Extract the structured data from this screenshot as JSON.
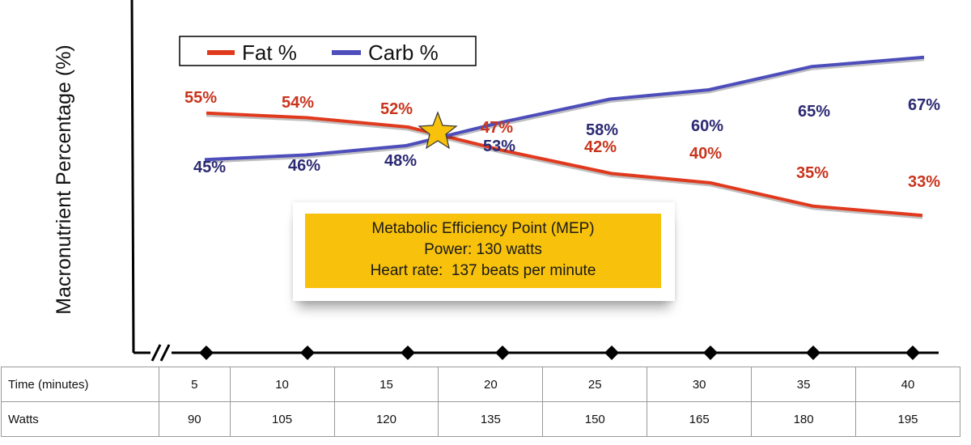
{
  "chart_data": {
    "type": "line",
    "ylabel": "Macronutrient Percentage (%)",
    "x": [
      5,
      10,
      15,
      20,
      25,
      30,
      35,
      40
    ],
    "series": [
      {
        "name": "Fat %",
        "color": "#e03a1e",
        "values": [
          55,
          54,
          52,
          47,
          42,
          40,
          35,
          33
        ],
        "labels": [
          "55%",
          "54%",
          "52%",
          "47%",
          "42%",
          "40%",
          "35%",
          "33%"
        ]
      },
      {
        "name": "Carb %",
        "color": "#4d4dbb",
        "values": [
          45,
          46,
          48,
          53,
          58,
          60,
          65,
          67
        ],
        "labels": [
          "45%",
          "46%",
          "48%",
          "53%",
          "58%",
          "60%",
          "65%",
          "67%"
        ]
      }
    ],
    "annotation": {
      "marker": "star",
      "lines": [
        "Metabolic Efficiency Point (MEP)",
        "Power: 130 watts",
        "Heart rate:  137 beats per minute"
      ]
    },
    "table": {
      "rows": [
        {
          "header": "Time (minutes)",
          "values": [
            "5",
            "10",
            "15",
            "20",
            "25",
            "30",
            "35",
            "40"
          ]
        },
        {
          "header": "Watts",
          "values": [
            "90",
            "105",
            "120",
            "135",
            "150",
            "165",
            "180",
            "195"
          ]
        }
      ]
    }
  },
  "colors": {
    "fat": "#e03a1e",
    "fat_label": "#c8341d",
    "carb": "#4d4dbb",
    "carb_label": "#2b2a73",
    "callout": "#f7c10c",
    "star": "#f7c10c"
  }
}
